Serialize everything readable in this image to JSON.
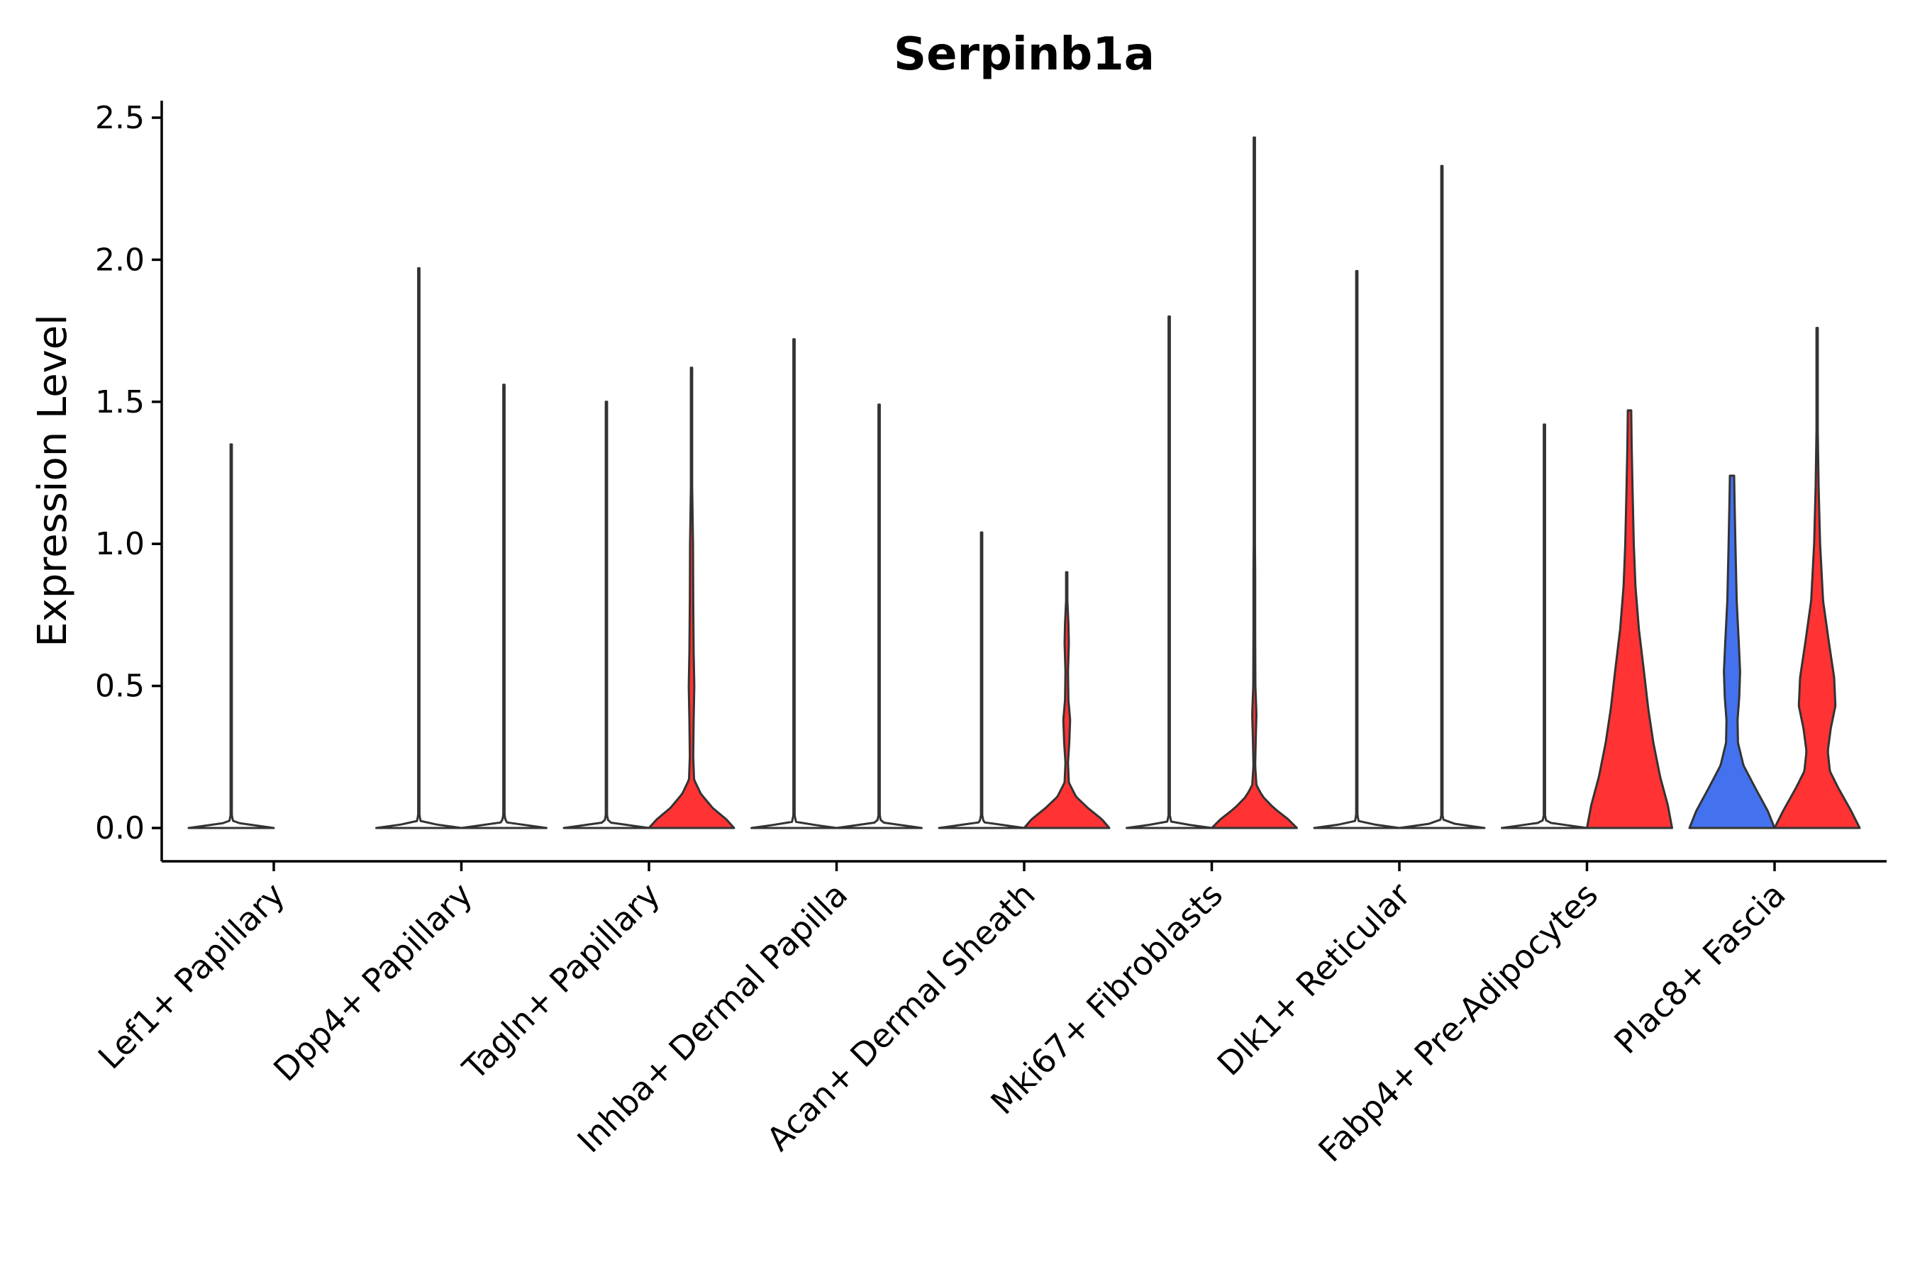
{
  "chart_data": {
    "type": "violin",
    "title": "Serpinb1a",
    "xlabel": "",
    "ylabel": "Expression Level",
    "ylim": [
      -0.12,
      2.58
    ],
    "yticks": [
      0.0,
      0.5,
      1.0,
      1.5,
      2.0,
      2.5
    ],
    "ytick_labels": [
      "0.0",
      "0.5",
      "1.0",
      "1.5",
      "2.0",
      "2.5"
    ],
    "grid": false,
    "legend": "none",
    "colors": {
      "red": "#ff3333",
      "blue": "#4472ee",
      "zero": "#ffffff",
      "outline": "#333333"
    },
    "categories": [
      "Lef1+ Papillary",
      "Dpp4+ Papillary",
      "Tagln+ Papillary",
      "Inhba+ Dermal Papilla",
      "Acan+ Dermal Sheath",
      "Mki67+ Fibroblasts",
      "Dlk1+ Reticular",
      "Fabp4+ Pre-Adipocytes",
      "Plac8+ Fascia"
    ],
    "violins": [
      {
        "category": "Lef1+ Papillary",
        "side": "left",
        "color": "zero",
        "max": 1.35,
        "profile": [
          [
            0,
            1
          ],
          [
            0.02,
            0.05
          ],
          [
            0.05,
            0.006
          ],
          [
            0.15,
            0.004
          ],
          [
            0.5,
            0.004
          ],
          [
            1.35,
            0.003
          ]
        ]
      },
      {
        "category": "Lef1+ Papillary",
        "side": "right",
        "color": "zero",
        "max": 0,
        "profile": []
      },
      {
        "category": "Dpp4+ Papillary",
        "side": "left",
        "color": "zero",
        "max": 1.97,
        "profile": [
          [
            0,
            1
          ],
          [
            0.02,
            0.05
          ],
          [
            0.05,
            0.006
          ],
          [
            0.15,
            0.004
          ],
          [
            0.5,
            0.004
          ],
          [
            1.97,
            0.003
          ]
        ]
      },
      {
        "category": "Dpp4+ Papillary",
        "side": "right",
        "color": "zero",
        "max": 1.56,
        "profile": [
          [
            0,
            1
          ],
          [
            0.02,
            0.05
          ],
          [
            0.05,
            0.006
          ],
          [
            0.15,
            0.004
          ],
          [
            0.5,
            0.004
          ],
          [
            1.56,
            0.003
          ]
        ]
      },
      {
        "category": "Tagln+ Papillary",
        "side": "left",
        "color": "zero",
        "max": 1.5,
        "profile": [
          [
            0,
            1
          ],
          [
            0.02,
            0.05
          ],
          [
            0.05,
            0.006
          ],
          [
            0.15,
            0.004
          ],
          [
            0.5,
            0.004
          ],
          [
            1.5,
            0.003
          ]
        ]
      },
      {
        "category": "Tagln+ Papillary",
        "side": "right",
        "color": "red",
        "max": 1.62,
        "profile": [
          [
            0,
            1
          ],
          [
            0.03,
            0.82
          ],
          [
            0.07,
            0.5
          ],
          [
            0.12,
            0.22
          ],
          [
            0.17,
            0.06
          ],
          [
            0.25,
            0.04
          ],
          [
            0.38,
            0.05
          ],
          [
            0.5,
            0.065
          ],
          [
            0.62,
            0.05
          ],
          [
            0.8,
            0.04
          ],
          [
            1.0,
            0.035
          ],
          [
            1.2,
            0.015
          ],
          [
            1.4,
            0.008
          ],
          [
            1.62,
            0.005
          ]
        ]
      },
      {
        "category": "Inhba+ Dermal Papilla",
        "side": "left",
        "color": "zero",
        "max": 1.72,
        "profile": [
          [
            0,
            1
          ],
          [
            0.02,
            0.05
          ],
          [
            0.05,
            0.006
          ],
          [
            0.15,
            0.004
          ],
          [
            0.5,
            0.004
          ],
          [
            1.72,
            0.003
          ]
        ]
      },
      {
        "category": "Inhba+ Dermal Papilla",
        "side": "right",
        "color": "zero",
        "max": 1.49,
        "profile": [
          [
            0,
            1
          ],
          [
            0.02,
            0.05
          ],
          [
            0.05,
            0.006
          ],
          [
            0.15,
            0.004
          ],
          [
            0.5,
            0.004
          ],
          [
            1.49,
            0.003
          ]
        ]
      },
      {
        "category": "Acan+ Dermal Sheath",
        "side": "left",
        "color": "zero",
        "max": 1.04,
        "profile": [
          [
            0,
            1
          ],
          [
            0.02,
            0.05
          ],
          [
            0.05,
            0.006
          ],
          [
            0.15,
            0.004
          ],
          [
            0.5,
            0.004
          ],
          [
            1.04,
            0.003
          ]
        ]
      },
      {
        "category": "Acan+ Dermal Sheath",
        "side": "right",
        "color": "red",
        "max": 0.9,
        "profile": [
          [
            0,
            1
          ],
          [
            0.03,
            0.83
          ],
          [
            0.07,
            0.5
          ],
          [
            0.11,
            0.22
          ],
          [
            0.16,
            0.05
          ],
          [
            0.23,
            0.03
          ],
          [
            0.3,
            0.06
          ],
          [
            0.38,
            0.08
          ],
          [
            0.45,
            0.04
          ],
          [
            0.55,
            0.03
          ],
          [
            0.65,
            0.05
          ],
          [
            0.72,
            0.04
          ],
          [
            0.8,
            0.015
          ],
          [
            0.9,
            0.006
          ]
        ]
      },
      {
        "category": "Mki67+ Fibroblasts",
        "side": "left",
        "color": "zero",
        "max": 1.8,
        "profile": [
          [
            0,
            1
          ],
          [
            0.02,
            0.05
          ],
          [
            0.05,
            0.006
          ],
          [
            0.15,
            0.004
          ],
          [
            0.5,
            0.004
          ],
          [
            1.8,
            0.003
          ]
        ]
      },
      {
        "category": "Mki67+ Fibroblasts",
        "side": "right",
        "color": "red",
        "max": 2.43,
        "profile": [
          [
            0,
            1
          ],
          [
            0.03,
            0.8
          ],
          [
            0.07,
            0.46
          ],
          [
            0.11,
            0.2
          ],
          [
            0.15,
            0.05
          ],
          [
            0.22,
            0.02
          ],
          [
            0.32,
            0.035
          ],
          [
            0.4,
            0.05
          ],
          [
            0.5,
            0.025
          ],
          [
            0.7,
            0.02
          ],
          [
            0.9,
            0.02
          ],
          [
            1.1,
            0.01
          ],
          [
            1.4,
            0.007
          ],
          [
            1.8,
            0.004
          ],
          [
            2.43,
            0.003
          ]
        ]
      },
      {
        "category": "Dlk1+ Reticular",
        "side": "left",
        "color": "zero",
        "max": 1.96,
        "profile": [
          [
            0,
            1
          ],
          [
            0.02,
            0.05
          ],
          [
            0.05,
            0.006
          ],
          [
            0.15,
            0.004
          ],
          [
            0.5,
            0.004
          ],
          [
            1.96,
            0.003
          ]
        ]
      },
      {
        "category": "Dlk1+ Reticular",
        "side": "right",
        "color": "zero",
        "max": 2.33,
        "profile": [
          [
            0,
            1
          ],
          [
            0.02,
            0.05
          ],
          [
            0.05,
            0.006
          ],
          [
            0.15,
            0.004
          ],
          [
            0.5,
            0.004
          ],
          [
            2.33,
            0.003
          ]
        ]
      },
      {
        "category": "Fabp4+ Pre-Adipocytes",
        "side": "left",
        "color": "zero",
        "max": 1.42,
        "profile": [
          [
            0,
            1
          ],
          [
            0.02,
            0.05
          ],
          [
            0.05,
            0.006
          ],
          [
            0.15,
            0.004
          ],
          [
            0.5,
            0.004
          ],
          [
            1.42,
            0.003
          ]
        ]
      },
      {
        "category": "Fabp4+ Pre-Adipocytes",
        "side": "right",
        "color": "red",
        "max": 1.47,
        "profile": [
          [
            0,
            1
          ],
          [
            0.08,
            0.9
          ],
          [
            0.18,
            0.72
          ],
          [
            0.3,
            0.56
          ],
          [
            0.42,
            0.44
          ],
          [
            0.55,
            0.34
          ],
          [
            0.7,
            0.22
          ],
          [
            0.85,
            0.14
          ],
          [
            1.0,
            0.1
          ],
          [
            1.2,
            0.07
          ],
          [
            1.35,
            0.05
          ],
          [
            1.47,
            0.04
          ]
        ]
      },
      {
        "category": "Plac8+ Fascia",
        "side": "left",
        "color": "blue",
        "max": 1.24,
        "profile": [
          [
            0,
            1
          ],
          [
            0.06,
            0.84
          ],
          [
            0.14,
            0.55
          ],
          [
            0.22,
            0.27
          ],
          [
            0.3,
            0.14
          ],
          [
            0.38,
            0.13
          ],
          [
            0.46,
            0.17
          ],
          [
            0.55,
            0.19
          ],
          [
            0.65,
            0.16
          ],
          [
            0.8,
            0.11
          ],
          [
            1.0,
            0.08
          ],
          [
            1.15,
            0.06
          ],
          [
            1.24,
            0.05
          ]
        ]
      },
      {
        "category": "Plac8+ Fascia",
        "side": "right",
        "color": "red",
        "max": 1.76,
        "profile": [
          [
            0,
            1
          ],
          [
            0.06,
            0.8
          ],
          [
            0.14,
            0.5
          ],
          [
            0.2,
            0.3
          ],
          [
            0.27,
            0.25
          ],
          [
            0.35,
            0.32
          ],
          [
            0.43,
            0.43
          ],
          [
            0.53,
            0.4
          ],
          [
            0.65,
            0.28
          ],
          [
            0.8,
            0.14
          ],
          [
            1.0,
            0.07
          ],
          [
            1.2,
            0.035
          ],
          [
            1.4,
            0.015
          ],
          [
            1.6,
            0.007
          ],
          [
            1.76,
            0.004
          ]
        ]
      }
    ]
  }
}
